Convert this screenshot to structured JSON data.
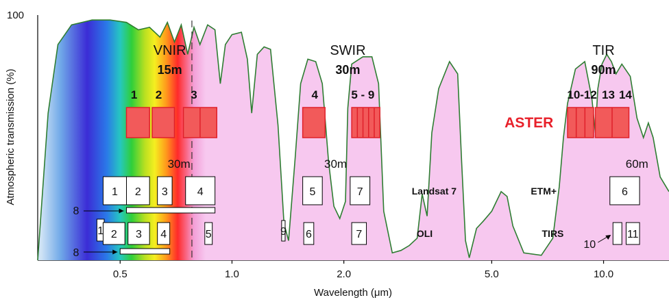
{
  "chart_data": {
    "type": "area",
    "ylabel": "Atmospheric transmission (%)",
    "xlabel": "Wavelength (μm)",
    "x_scale": "log",
    "xlim": [
      0.3,
      15
    ],
    "ylim": [
      0,
      100
    ],
    "x_ticks": [
      {
        "value": 0.5,
        "label": "0.5"
      },
      {
        "value": 1.0,
        "label": "1.0"
      },
      {
        "value": 2.0,
        "label": "2.0"
      },
      {
        "value": 5.0,
        "label": "5.0"
      },
      {
        "value": 10.0,
        "label": "10.0"
      }
    ],
    "y_tick_label": "100",
    "colors": {
      "curve_line": "#2e7d32",
      "fill_ir": "#f7c8ef",
      "aster_box": "#f25a5a",
      "aster_text": "#e8202a"
    },
    "transmission": [
      [
        0.3,
        0
      ],
      [
        0.32,
        60
      ],
      [
        0.34,
        88
      ],
      [
        0.37,
        96
      ],
      [
        0.42,
        98
      ],
      [
        0.47,
        98
      ],
      [
        0.52,
        97
      ],
      [
        0.56,
        94
      ],
      [
        0.6,
        95
      ],
      [
        0.64,
        91
      ],
      [
        0.67,
        97
      ],
      [
        0.7,
        89
      ],
      [
        0.73,
        96
      ],
      [
        0.76,
        84
      ],
      [
        0.79,
        95
      ],
      [
        0.82,
        88
      ],
      [
        0.86,
        96
      ],
      [
        0.9,
        94
      ],
      [
        0.93,
        72
      ],
      [
        0.96,
        88
      ],
      [
        1.0,
        92
      ],
      [
        1.06,
        93
      ],
      [
        1.1,
        82
      ],
      [
        1.13,
        60
      ],
      [
        1.17,
        84
      ],
      [
        1.22,
        87
      ],
      [
        1.27,
        86
      ],
      [
        1.33,
        55
      ],
      [
        1.38,
        15
      ],
      [
        1.42,
        8
      ],
      [
        1.48,
        42
      ],
      [
        1.53,
        72
      ],
      [
        1.6,
        82
      ],
      [
        1.68,
        81
      ],
      [
        1.75,
        72
      ],
      [
        1.82,
        40
      ],
      [
        1.88,
        22
      ],
      [
        1.95,
        17
      ],
      [
        2.02,
        24
      ],
      [
        2.05,
        62
      ],
      [
        2.1,
        80
      ],
      [
        2.25,
        83
      ],
      [
        2.38,
        83
      ],
      [
        2.48,
        72
      ],
      [
        2.56,
        20
      ],
      [
        2.7,
        3
      ],
      [
        2.85,
        4
      ],
      [
        3.0,
        6
      ],
      [
        3.15,
        9
      ],
      [
        3.25,
        27
      ],
      [
        3.35,
        18
      ],
      [
        3.45,
        52
      ],
      [
        3.6,
        70
      ],
      [
        3.85,
        81
      ],
      [
        4.05,
        76
      ],
      [
        4.15,
        40
      ],
      [
        4.25,
        8
      ],
      [
        4.35,
        1
      ],
      [
        4.55,
        13
      ],
      [
        4.75,
        16
      ],
      [
        5.0,
        20
      ],
      [
        5.3,
        28
      ],
      [
        5.5,
        26
      ],
      [
        5.7,
        14
      ],
      [
        6.1,
        3
      ],
      [
        6.8,
        2
      ],
      [
        7.3,
        9
      ],
      [
        7.6,
        30
      ],
      [
        7.8,
        50
      ],
      [
        8.0,
        64
      ],
      [
        8.4,
        78
      ],
      [
        8.9,
        81
      ],
      [
        9.3,
        66
      ],
      [
        9.5,
        52
      ],
      [
        9.65,
        70
      ],
      [
        9.9,
        80
      ],
      [
        10.2,
        84
      ],
      [
        10.5,
        81
      ],
      [
        10.8,
        76
      ],
      [
        11.2,
        80
      ],
      [
        11.8,
        75
      ],
      [
        12.3,
        58
      ],
      [
        12.8,
        50
      ],
      [
        13.2,
        56
      ],
      [
        13.6,
        50
      ],
      [
        14.2,
        34
      ],
      [
        15.0,
        28
      ]
    ],
    "vnir_divider_wavelength": 0.78,
    "regions": [
      {
        "name": "VNIR",
        "resolution": "15m",
        "center": 0.68
      },
      {
        "name": "SWIR",
        "resolution": "30m",
        "center": 2.05
      },
      {
        "name": "TIR",
        "resolution": "90m",
        "center": 10.0
      }
    ],
    "aster": {
      "label": "ASTER",
      "band_labels": [
        {
          "text": "1",
          "center": 0.545
        },
        {
          "text": "2",
          "center": 0.635
        },
        {
          "text": "3",
          "center": 0.79
        },
        {
          "text": "4",
          "center": 1.67
        },
        {
          "text": "5 - 9",
          "center": 2.25
        },
        {
          "text": "10-12",
          "center": 8.75
        },
        {
          "text": "13",
          "center": 10.3
        },
        {
          "text": "14",
          "center": 11.45
        }
      ],
      "bands": [
        {
          "x0": 0.52,
          "x1": 0.6,
          "subdivisions": 1
        },
        {
          "x0": 0.61,
          "x1": 0.7,
          "subdivisions": 1
        },
        {
          "x0": 0.74,
          "x1": 0.91,
          "subdivisions": 2
        },
        {
          "x0": 1.55,
          "x1": 1.78,
          "subdivisions": 1
        },
        {
          "x0": 2.1,
          "x1": 2.5,
          "subdivisions": 5
        },
        {
          "x0": 8.0,
          "x1": 9.4,
          "subdivisions": 3
        },
        {
          "x0": 9.5,
          "x1": 11.7,
          "subdivisions": 2
        }
      ]
    },
    "landsat7": {
      "label": "Landsat 7",
      "label_center": 3.5,
      "etm_label": "ETM+",
      "etm_center": 6.9,
      "res_labels": [
        {
          "text": "30m",
          "center": 0.72
        },
        {
          "text": "30m",
          "center": 1.9
        },
        {
          "text": "60m",
          "center": 12.3
        }
      ],
      "bands": [
        {
          "text": "1",
          "x0": 0.45,
          "x1": 0.52
        },
        {
          "text": "2",
          "x0": 0.52,
          "x1": 0.6
        },
        {
          "text": "3",
          "x0": 0.63,
          "x1": 0.69
        },
        {
          "text": "4",
          "x0": 0.75,
          "x1": 0.9
        },
        {
          "text": "5",
          "x0": 1.55,
          "x1": 1.75
        },
        {
          "text": "7",
          "x0": 2.08,
          "x1": 2.35
        },
        {
          "text": "6",
          "x0": 10.4,
          "x1": 12.5
        }
      ],
      "pan": {
        "label": "8",
        "x0": 0.52,
        "x1": 0.9
      }
    },
    "landsat8": {
      "label": "OLI",
      "label_center": 3.3,
      "tirs_label": "TIRS",
      "tirs_center": 7.3,
      "bands": [
        {
          "text": "1",
          "x0": 0.433,
          "x1": 0.453
        },
        {
          "text": "2",
          "x0": 0.45,
          "x1": 0.515
        },
        {
          "text": "3",
          "x0": 0.525,
          "x1": 0.6
        },
        {
          "text": "4",
          "x0": 0.63,
          "x1": 0.68
        },
        {
          "text": "5",
          "x0": 0.845,
          "x1": 0.885
        },
        {
          "text": "9",
          "x0": 1.36,
          "x1": 1.39
        },
        {
          "text": "6",
          "x0": 1.56,
          "x1": 1.66
        },
        {
          "text": "7",
          "x0": 2.1,
          "x1": 2.3
        },
        {
          "text": "10",
          "x0": 10.6,
          "x1": 11.2
        },
        {
          "text": "11",
          "x0": 11.5,
          "x1": 12.5
        }
      ],
      "pan": {
        "label": "8",
        "x0": 0.5,
        "x1": 0.68
      }
    }
  }
}
